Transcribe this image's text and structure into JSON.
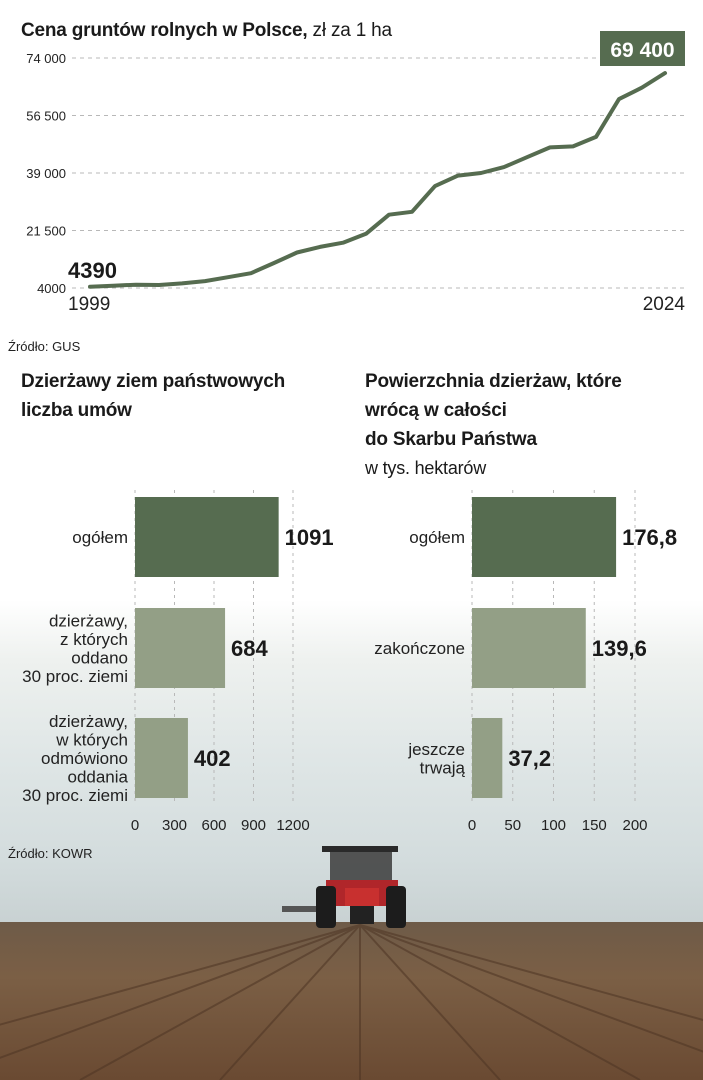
{
  "line_chart": {
    "title": "Cena gruntów rolnych w Polsce,",
    "unit": "zł za 1 ha",
    "source": "Źródło: GUS",
    "start_label": "4390",
    "end_label": "69 400",
    "year_start": "1999",
    "year_end": "2024"
  },
  "left_chart": {
    "title_line1": "Dzierżawy ziem państwowych",
    "title_line2": "liczba umów",
    "source": "Źródło: KOWR"
  },
  "right_chart": {
    "title_line1": "Powierzchnia dzierżaw, które",
    "title_line2": "wrócą w całości",
    "title_line3": "do Skarbu Państwa",
    "subtitle": "w tys. hektarów"
  },
  "colors": {
    "dark_green": "#566c50",
    "light_green": "#939f86",
    "grid": "#b8b8b8"
  },
  "chart_data": [
    {
      "type": "line",
      "title": "Cena gruntów rolnych w Polsce, zł za 1 ha",
      "x": [
        1999,
        2000,
        2001,
        2002,
        2003,
        2004,
        2005,
        2006,
        2007,
        2008,
        2009,
        2010,
        2011,
        2012,
        2013,
        2014,
        2015,
        2016,
        2017,
        2018,
        2019,
        2020,
        2021,
        2022,
        2023,
        2024
      ],
      "values": [
        4390,
        4700,
        5000,
        4900,
        5400,
        6100,
        7300,
        8500,
        11600,
        14800,
        16500,
        17800,
        20500,
        26300,
        27200,
        35000,
        38200,
        39000,
        40800,
        43800,
        46800,
        47100,
        50000,
        61500,
        65000,
        69400
      ],
      "y_ticks": [
        "74 000",
        "56 500",
        "39 000",
        "21 500",
        "4000"
      ],
      "ylim": [
        4000,
        74000
      ],
      "grid": true
    },
    {
      "type": "bar",
      "orientation": "horizontal",
      "title": "Dzierżawy ziem państwowych liczba umów",
      "categories": [
        "ogółem",
        "dzierżawy, z których oddano 30 proc. ziemi",
        "dzierżawy, w których odmówiono oddania 30 proc. ziemi"
      ],
      "category_lines": [
        [
          "ogółem"
        ],
        [
          "dzierżawy,",
          "z których",
          "oddano",
          "30 proc. ziemi"
        ],
        [
          "dzierżawy,",
          "w których",
          "odmówiono",
          "oddania",
          "30 proc. ziemi"
        ]
      ],
      "values": [
        1091,
        684,
        402
      ],
      "value_labels": [
        "1091",
        "684",
        "402"
      ],
      "x_ticks": [
        "0",
        "300",
        "600",
        "900",
        "1200"
      ],
      "xlim": [
        0,
        1200
      ],
      "grid": true
    },
    {
      "type": "bar",
      "orientation": "horizontal",
      "title": "Powierzchnia dzierżaw, które wrócą w całości do Skarbu Państwa",
      "subtitle": "w tys. hektarów",
      "categories": [
        "ogółem",
        "zakończone",
        "jeszcze trwają"
      ],
      "category_lines": [
        [
          "ogółem"
        ],
        [
          "zakończone"
        ],
        [
          "jeszcze",
          "trwają"
        ]
      ],
      "values": [
        176.8,
        139.6,
        37.2
      ],
      "value_labels": [
        "176,8",
        "139,6",
        "37,2"
      ],
      "x_ticks": [
        "0",
        "50",
        "100",
        "150",
        "200"
      ],
      "xlim": [
        0,
        200
      ],
      "grid": true
    }
  ]
}
